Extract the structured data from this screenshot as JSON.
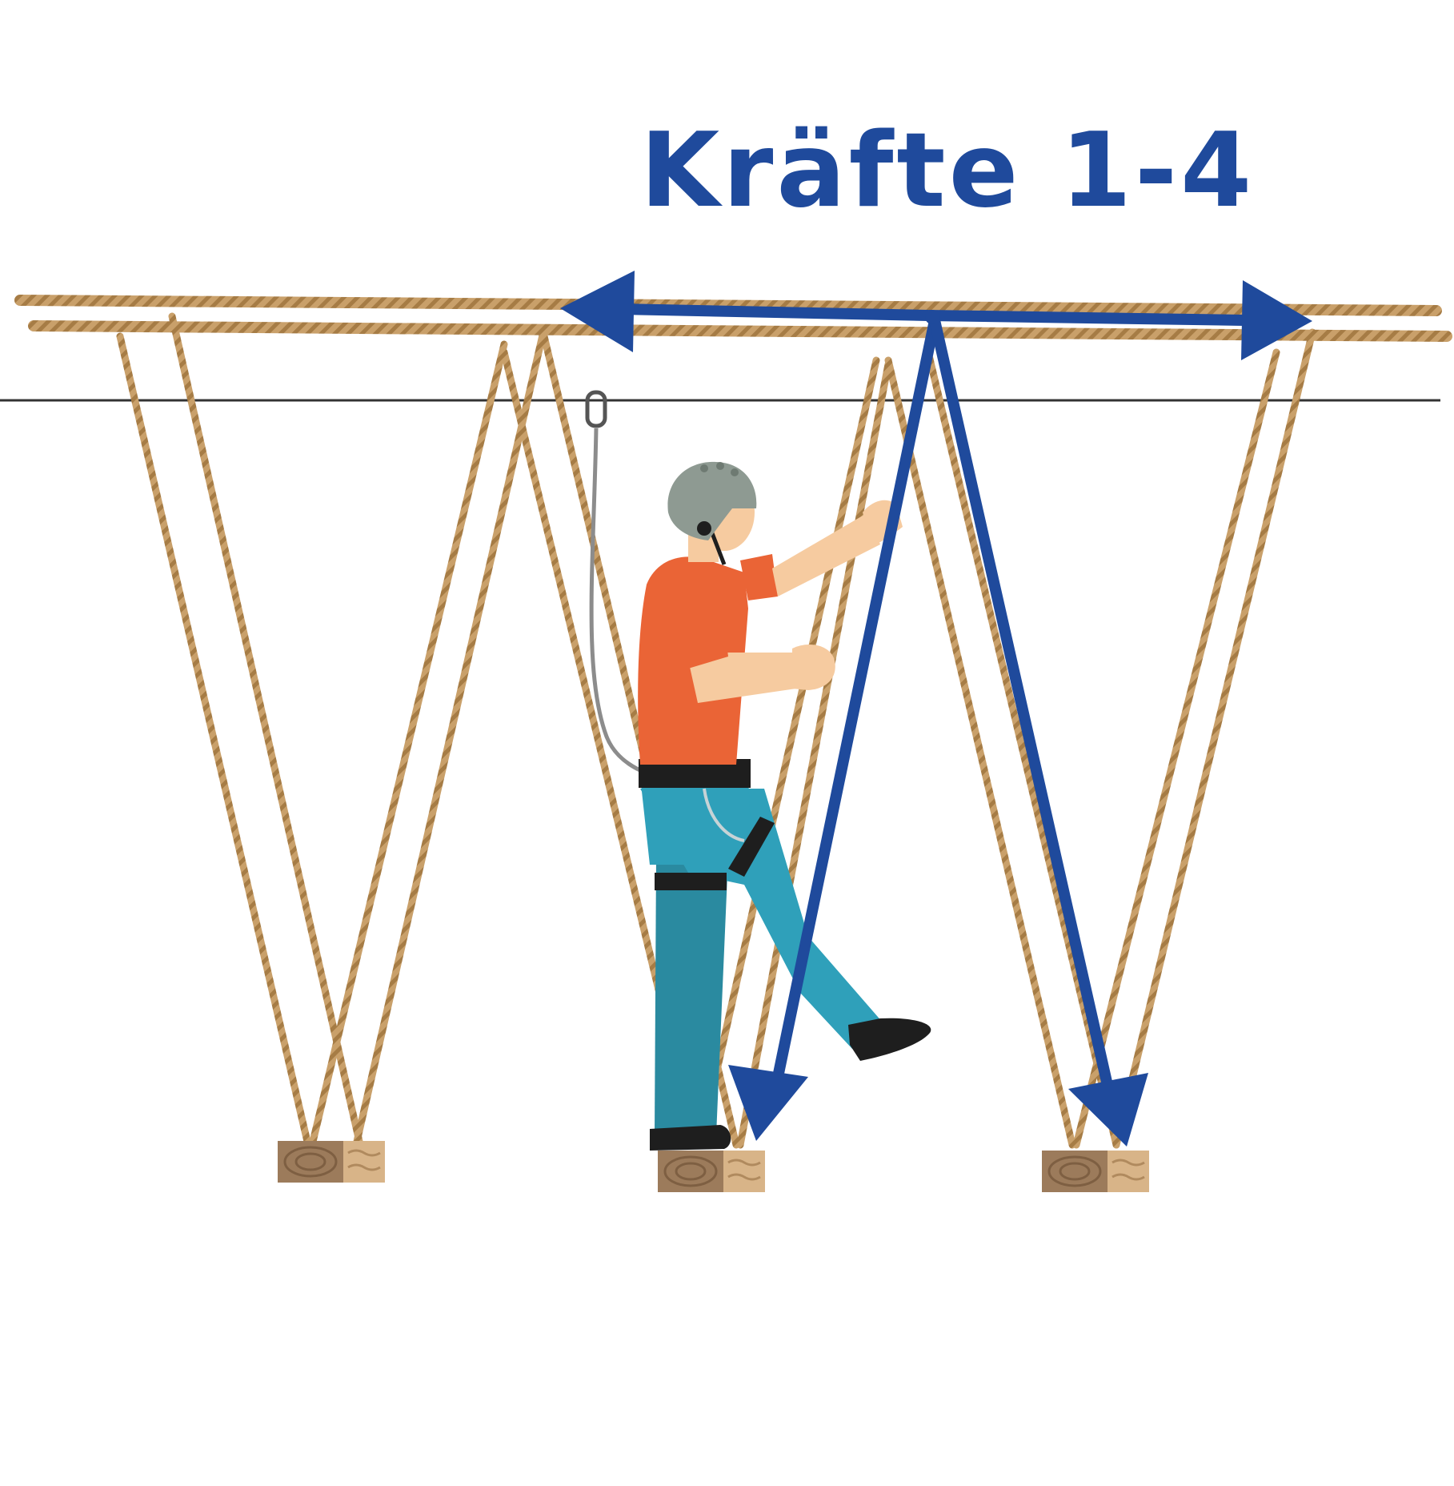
{
  "title": "Kräfte 1-4",
  "colors": {
    "force": "#1F4A9C",
    "rope": "#C9A06A",
    "rope_stripe": "#A67C45",
    "cable": "#333333",
    "wood_end": "#9C7B5B",
    "wood_side": "#D8B488",
    "helmet": "#8E9A92",
    "shirt": "#EA6436",
    "pants": "#2FA0BA",
    "pants_dark": "#2A8AA0",
    "skin": "#F6CBA0",
    "harness": "#1E1E1E",
    "lanyard": "#8C8C8C"
  },
  "icons": {
    "carabiner": "carabiner-icon",
    "climber": "climber-figure"
  }
}
